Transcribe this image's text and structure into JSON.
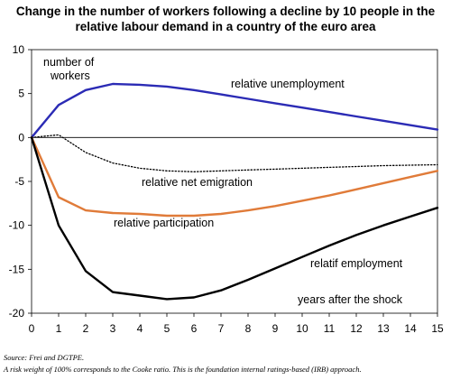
{
  "chart_data": {
    "type": "line",
    "title_lines": [
      "Change in the number of workers following a decline by 10 people in the",
      "relative labour demand in a country of the euro area"
    ],
    "x": [
      0,
      1,
      2,
      3,
      4,
      5,
      6,
      7,
      8,
      9,
      10,
      11,
      12,
      13,
      14,
      15
    ],
    "xlim": [
      0,
      15
    ],
    "ylim": [
      -20,
      10
    ],
    "y_ticks": [
      10,
      5,
      0,
      -5,
      -10,
      -15,
      -20
    ],
    "x_ticks": [
      0,
      1,
      2,
      3,
      4,
      5,
      6,
      7,
      8,
      9,
      10,
      11,
      12,
      13,
      14,
      15
    ],
    "grid": false,
    "legend": "none",
    "series": [
      {
        "name": "relative unemployment",
        "color": "#2b2bb5",
        "style": "solid",
        "values": [
          0,
          3.7,
          5.4,
          6.1,
          6.0,
          5.8,
          5.4,
          4.9,
          4.4,
          3.9,
          3.4,
          2.9,
          2.4,
          1.9,
          1.4,
          0.9
        ]
      },
      {
        "name": "relative net emigration",
        "color": "#000000",
        "style": "dotted",
        "values": [
          0,
          0.3,
          -1.7,
          -2.9,
          -3.5,
          -3.8,
          -3.9,
          -3.8,
          -3.7,
          -3.6,
          -3.5,
          -3.4,
          -3.3,
          -3.2,
          -3.15,
          -3.1
        ]
      },
      {
        "name": "relative participation",
        "color": "#e07b39",
        "style": "solid",
        "values": [
          0,
          -6.8,
          -8.3,
          -8.6,
          -8.7,
          -8.9,
          -8.9,
          -8.7,
          -8.3,
          -7.8,
          -7.2,
          -6.6,
          -5.9,
          -5.2,
          -4.5,
          -3.8
        ]
      },
      {
        "name": "relatif employment",
        "color": "#000000",
        "style": "solid",
        "values": [
          0,
          -10.0,
          -15.2,
          -17.6,
          -18.0,
          -18.4,
          -18.2,
          -17.4,
          -16.2,
          -14.9,
          -13.6,
          -12.3,
          -11.1,
          -10.0,
          -9.0,
          -8.0
        ]
      }
    ],
    "annotations": {
      "workers_line1": "number of",
      "workers_line2": "workers",
      "unemployment": "relative unemployment",
      "emigration": "relative net emigration",
      "participation": "relative participation",
      "employment": "relatif employment",
      "years": "years after the shock"
    }
  },
  "footnotes": {
    "source": "Source: Frei and DGTPE.",
    "note": "A risk weight of 100% corresponds to the Cooke ratio. This is the foundation internal ratings-based (IRB) approach."
  }
}
